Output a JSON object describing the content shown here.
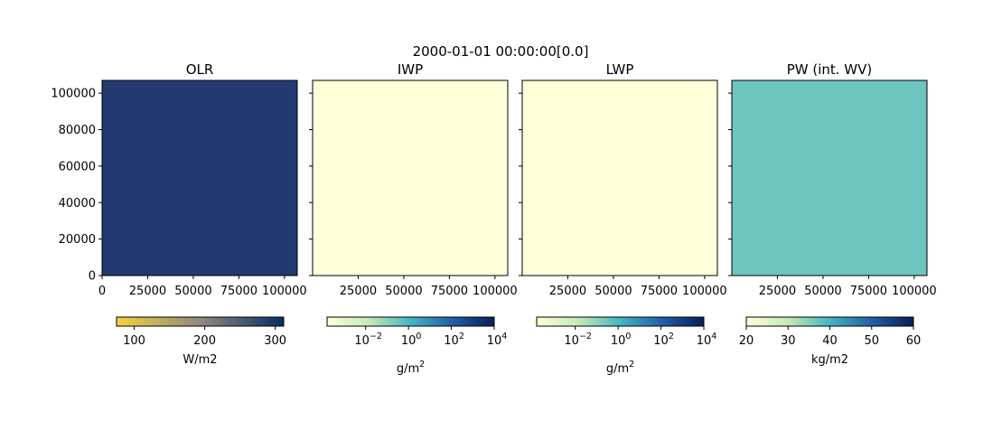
{
  "chart_data": {
    "suptitle": "2000-01-01 00:00:00[0.0]",
    "panels": [
      {
        "type": "heatmap",
        "title": "OLR",
        "fill_color": "#223a70",
        "xlim": [
          0,
          107000
        ],
        "ylim": [
          0,
          107000
        ],
        "xticks": [
          0,
          25000,
          50000,
          75000,
          100000
        ],
        "xtick_labels": [
          "0",
          "25000",
          "50000",
          "75000",
          "100000"
        ],
        "yticks": [
          0,
          20000,
          40000,
          60000,
          80000,
          100000
        ],
        "ytick_labels": [
          "0",
          "20000",
          "40000",
          "60000",
          "80000",
          "100000"
        ],
        "show_ytick_labels": true,
        "colorbar": {
          "label": "W/m2",
          "scale": "linear",
          "range": [
            75,
            312
          ],
          "ticks": [
            100,
            200,
            300
          ],
          "tick_labels": [
            "100",
            "200",
            "300"
          ],
          "colors": [
            "#f3d23d",
            "#8e8a7f",
            "#062d64"
          ]
        }
      },
      {
        "type": "heatmap",
        "title": "IWP",
        "fill_color": "#ffffd9",
        "xlim": [
          0,
          107000
        ],
        "ylim": [
          0,
          107000
        ],
        "xticks": [
          25000,
          50000,
          75000,
          100000
        ],
        "xtick_labels": [
          "25000",
          "50000",
          "75000",
          "100000"
        ],
        "yticks": [
          0,
          20000,
          40000,
          60000,
          80000,
          100000
        ],
        "show_ytick_labels": false,
        "colorbar": {
          "label": "g/m",
          "label_sup": "2",
          "scale": "log",
          "range": [
            -3.8,
            4
          ],
          "ticks": [
            -2,
            0,
            2,
            4
          ],
          "tick_base": "10",
          "tick_exponents": [
            "−2",
            "0",
            "2",
            "4"
          ],
          "colors": [
            "#ffffd9",
            "#c7e9b4",
            "#41b6c4",
            "#225ea8",
            "#081d58"
          ]
        }
      },
      {
        "type": "heatmap",
        "title": "LWP",
        "fill_color": "#ffffd9",
        "xlim": [
          0,
          107000
        ],
        "ylim": [
          0,
          107000
        ],
        "xticks": [
          25000,
          50000,
          75000,
          100000
        ],
        "xtick_labels": [
          "25000",
          "50000",
          "75000",
          "100000"
        ],
        "yticks": [
          0,
          20000,
          40000,
          60000,
          80000,
          100000
        ],
        "show_ytick_labels": false,
        "colorbar": {
          "label": "g/m",
          "label_sup": "2",
          "scale": "log",
          "range": [
            -3.8,
            4
          ],
          "ticks": [
            -2,
            0,
            2,
            4
          ],
          "tick_base": "10",
          "tick_exponents": [
            "−2",
            "0",
            "2",
            "4"
          ],
          "colors": [
            "#ffffd9",
            "#c7e9b4",
            "#41b6c4",
            "#225ea8",
            "#081d58"
          ]
        }
      },
      {
        "type": "heatmap",
        "title": "PW (int. WV)",
        "fill_color": "#6cc5bf",
        "xlim": [
          0,
          107000
        ],
        "ylim": [
          0,
          107000
        ],
        "xticks": [
          25000,
          50000,
          75000,
          100000
        ],
        "xtick_labels": [
          "25000",
          "50000",
          "75000",
          "100000"
        ],
        "yticks": [
          0,
          20000,
          40000,
          60000,
          80000,
          100000
        ],
        "show_ytick_labels": false,
        "colorbar": {
          "label": "kg/m2",
          "scale": "linear",
          "range": [
            20,
            60
          ],
          "ticks": [
            20,
            30,
            40,
            50,
            60
          ],
          "tick_labels": [
            "20",
            "30",
            "40",
            "50",
            "60"
          ],
          "colors": [
            "#ffffd9",
            "#c7e9b4",
            "#41b6c4",
            "#225ea8",
            "#081d58"
          ]
        }
      }
    ]
  }
}
